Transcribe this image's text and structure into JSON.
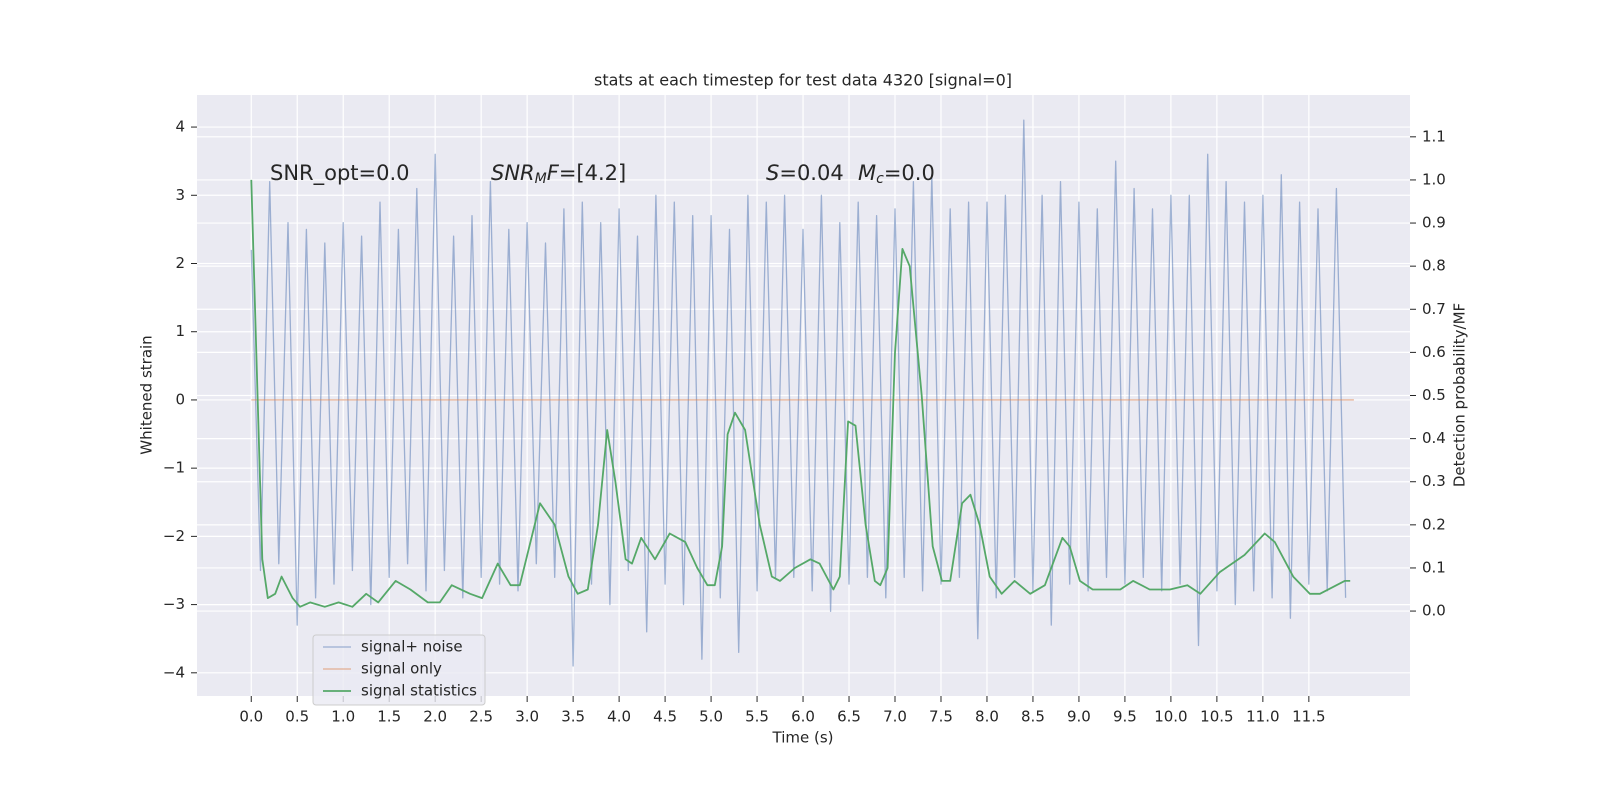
{
  "chart_data": {
    "type": "line",
    "title": "stats at each timestep for test data 4320 [signal=0]",
    "xlabel": "Time (s)",
    "ylabel": "Whitened strain",
    "y2label": "Detection probability/MF",
    "annotations": [
      [
        "SNR_opt=0.0"
      ],
      [
        "SNR",
        "M",
        "F",
        "=[4.2]"
      ],
      [
        "S",
        "=0.04"
      ],
      [
        "M",
        "c",
        "=0.0"
      ]
    ],
    "xlim": [
      -0.59,
      12.6
    ],
    "xticks": [
      {
        "value": 0,
        "label": "0.0"
      },
      {
        "value": 0.5,
        "label": "0.5"
      },
      {
        "value": 1,
        "label": "1.0"
      },
      {
        "value": 1.5,
        "label": "1.5"
      },
      {
        "value": 2,
        "label": "2.0"
      },
      {
        "value": 2.5,
        "label": "2.5"
      },
      {
        "value": 3,
        "label": "3.0"
      },
      {
        "value": 3.5,
        "label": "3.5"
      },
      {
        "value": 4,
        "label": "4.0"
      },
      {
        "value": 4.5,
        "label": "4.5"
      },
      {
        "value": 5,
        "label": "5.0"
      },
      {
        "value": 5.5,
        "label": "5.5"
      },
      {
        "value": 6,
        "label": "6.0"
      },
      {
        "value": 6.5,
        "label": "6.5"
      },
      {
        "value": 7,
        "label": "7.0"
      },
      {
        "value": 7.5,
        "label": "7.5"
      },
      {
        "value": 8,
        "label": "8.0"
      },
      {
        "value": 8.5,
        "label": "8.5"
      },
      {
        "value": 9,
        "label": "9.0"
      },
      {
        "value": 9.5,
        "label": "9.5"
      },
      {
        "value": 10,
        "label": "10.0"
      },
      {
        "value": 10.5,
        "label": "10.5"
      },
      {
        "value": 11,
        "label": "11.0"
      },
      {
        "value": 11.5,
        "label": "11.5"
      }
    ],
    "ylim": [
      -4.34,
      4.47
    ],
    "yticks": [
      {
        "value": -4,
        "label": "−4"
      },
      {
        "value": -3,
        "label": "−3"
      },
      {
        "value": -2,
        "label": "−2"
      },
      {
        "value": -1,
        "label": "−1"
      },
      0,
      1,
      2,
      3,
      4
    ],
    "y2lim": [
      -0.197,
      1.197
    ],
    "y2ticks": [
      {
        "value": 0,
        "label": "0.0"
      },
      {
        "value": 0.1,
        "label": "0.1"
      },
      {
        "value": 0.2,
        "label": "0.2"
      },
      {
        "value": 0.3,
        "label": "0.3"
      },
      {
        "value": 0.4,
        "label": "0.4"
      },
      {
        "value": 0.5,
        "label": "0.5"
      },
      {
        "value": 0.6,
        "label": "0.6"
      },
      {
        "value": 0.7,
        "label": "0.7"
      },
      {
        "value": 0.8,
        "label": "0.8"
      },
      {
        "value": 0.9,
        "label": "0.9"
      },
      {
        "value": 1,
        "label": "1.0"
      },
      {
        "value": 1.1,
        "label": "1.1"
      }
    ],
    "grid": true,
    "legend": "lower left",
    "series": [
      {
        "name": "signal+ noise",
        "color": "#4c72b0",
        "x": [
          0,
          0.1,
          0.2,
          0.3,
          0.4,
          0.5,
          0.6,
          0.7,
          0.8,
          0.9,
          1,
          1.1,
          1.2,
          1.3,
          1.4,
          1.5,
          1.6,
          1.7,
          1.8,
          1.9,
          2,
          2.1,
          2.2,
          2.3,
          2.4,
          2.5,
          2.6,
          2.7,
          2.8,
          2.9,
          3,
          3.1,
          3.2,
          3.3,
          3.4,
          3.5,
          3.6,
          3.7,
          3.8,
          3.9,
          4,
          4.1,
          4.2,
          4.3,
          4.4,
          4.5,
          4.6,
          4.7,
          4.8,
          4.9,
          5,
          5.1,
          5.2,
          5.3,
          5.4,
          5.5,
          5.6,
          5.7,
          5.8,
          5.9,
          6,
          6.1,
          6.2,
          6.3,
          6.4,
          6.5,
          6.6,
          6.7,
          6.8,
          6.9,
          7,
          7.1,
          7.2,
          7.3,
          7.4,
          7.5,
          7.6,
          7.7,
          7.8,
          7.9,
          8,
          8.1,
          8.2,
          8.3,
          8.4,
          8.5,
          8.6,
          8.7,
          8.8,
          8.9,
          9,
          9.1,
          9.2,
          9.3,
          9.4,
          9.5,
          9.6,
          9.7,
          9.8,
          9.9,
          10,
          10.1,
          10.2,
          10.3,
          10.4,
          10.5,
          10.6,
          10.7,
          10.8,
          10.9,
          11,
          11.1,
          11.2,
          11.3,
          11.4,
          11.5,
          11.6,
          11.7,
          11.8,
          11.9
        ],
        "values": [
          2.2,
          -2.5,
          3.2,
          -2.4,
          2.6,
          -3.3,
          2.5,
          -2.9,
          2.3,
          -2.7,
          2.6,
          -2.5,
          2.4,
          -3.0,
          2.9,
          -2.6,
          2.5,
          -2.4,
          3.1,
          -2.8,
          3.6,
          -2.5,
          2.4,
          -2.9,
          2.7,
          -2.6,
          3.2,
          -2.7,
          2.5,
          -2.8,
          2.6,
          -2.4,
          2.3,
          -2.6,
          2.8,
          -3.9,
          2.9,
          -2.7,
          2.6,
          -3.0,
          2.8,
          -2.5,
          2.4,
          -3.4,
          3.0,
          -2.7,
          2.9,
          -3.0,
          2.7,
          -3.8,
          2.7,
          -2.9,
          2.5,
          -3.7,
          3.0,
          -2.8,
          2.9,
          -2.6,
          3.0,
          -2.6,
          2.5,
          -2.8,
          3.0,
          -3.1,
          2.6,
          -2.7,
          2.9,
          -2.6,
          2.7,
          -2.9,
          2.8,
          -2.6,
          3.2,
          -2.8,
          3.3,
          -2.7,
          2.8,
          -2.6,
          2.9,
          -3.5,
          2.9,
          -2.9,
          3.0,
          -2.6,
          4.1,
          -2.8,
          3.0,
          -3.3,
          3.2,
          -2.7,
          2.9,
          -2.8,
          2.8,
          -2.6,
          3.5,
          -2.7,
          3.1,
          -2.6,
          2.8,
          -2.8,
          3.0,
          -2.7,
          3.0,
          -3.6,
          3.6,
          -2.8,
          3.2,
          -3.0,
          2.9,
          -2.8,
          3.0,
          -2.9,
          3.3,
          -3.2,
          2.9,
          -2.7,
          2.8,
          -2.8,
          3.1,
          -2.9
        ]
      },
      {
        "name": "signal only",
        "color": "#dd8452",
        "x": [
          0,
          11.99
        ],
        "values": [
          0,
          0
        ]
      },
      {
        "name": "signal statistics",
        "color": "#55a868",
        "axis": "y2",
        "x": [
          0,
          0.12,
          0.18,
          0.26,
          0.33,
          0.45,
          0.53,
          0.64,
          0.8,
          0.95,
          1.1,
          1.25,
          1.38,
          1.57,
          1.73,
          1.92,
          2.05,
          2.18,
          2.38,
          2.51,
          2.68,
          2.82,
          2.92,
          3.14,
          3.3,
          3.45,
          3.55,
          3.66,
          3.77,
          3.87,
          3.96,
          4.07,
          4.14,
          4.24,
          4.39,
          4.55,
          4.72,
          4.85,
          4.96,
          5.04,
          5.12,
          5.18,
          5.26,
          5.37,
          5.53,
          5.66,
          5.75,
          5.91,
          6.08,
          6.18,
          6.33,
          6.4,
          6.49,
          6.57,
          6.68,
          6.78,
          6.84,
          6.92,
          7.0,
          7.08,
          7.16,
          7.29,
          7.41,
          7.51,
          7.6,
          7.73,
          7.82,
          7.92,
          8.03,
          8.16,
          8.3,
          8.47,
          8.63,
          8.82,
          8.9,
          9.01,
          9.15,
          9.45,
          9.59,
          9.77,
          9.99,
          10.18,
          10.32,
          10.53,
          10.8,
          11.02,
          11.13,
          11.33,
          11.51,
          11.62,
          11.89,
          11.95
        ],
        "values": [
          1.0,
          0.12,
          0.03,
          0.04,
          0.08,
          0.03,
          0.01,
          0.02,
          0.01,
          0.02,
          0.01,
          0.04,
          0.02,
          0.07,
          0.05,
          0.02,
          0.02,
          0.06,
          0.04,
          0.03,
          0.11,
          0.06,
          0.06,
          0.25,
          0.2,
          0.08,
          0.04,
          0.05,
          0.2,
          0.42,
          0.3,
          0.12,
          0.11,
          0.17,
          0.12,
          0.18,
          0.16,
          0.1,
          0.06,
          0.06,
          0.15,
          0.41,
          0.46,
          0.42,
          0.2,
          0.08,
          0.07,
          0.1,
          0.12,
          0.11,
          0.05,
          0.08,
          0.44,
          0.43,
          0.2,
          0.07,
          0.06,
          0.1,
          0.6,
          0.84,
          0.8,
          0.5,
          0.15,
          0.07,
          0.07,
          0.25,
          0.27,
          0.2,
          0.08,
          0.04,
          0.07,
          0.04,
          0.06,
          0.17,
          0.15,
          0.07,
          0.05,
          0.05,
          0.07,
          0.05,
          0.05,
          0.06,
          0.04,
          0.09,
          0.13,
          0.18,
          0.16,
          0.08,
          0.04,
          0.04,
          0.07,
          0.07
        ]
      }
    ]
  }
}
